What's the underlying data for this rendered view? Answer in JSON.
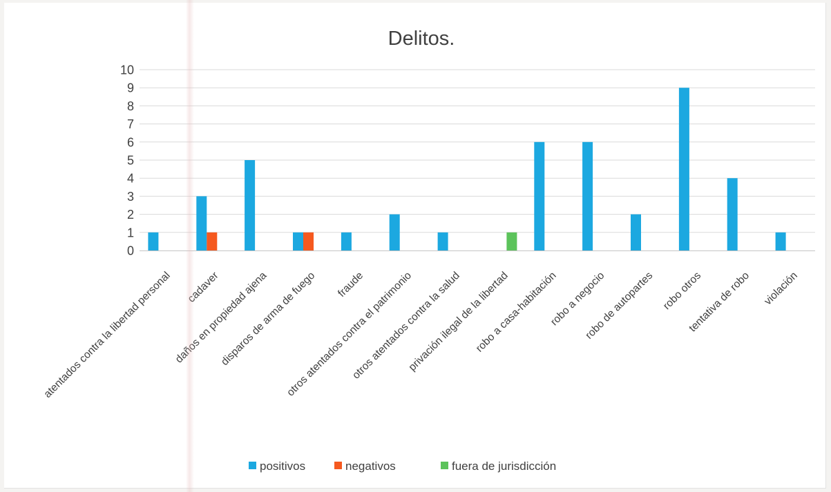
{
  "chart_data": {
    "type": "bar",
    "title": "Delitos.",
    "xlabel": "",
    "ylabel": "",
    "ylim": [
      0,
      10
    ],
    "yticks": [
      0,
      1,
      2,
      3,
      4,
      5,
      6,
      7,
      8,
      9,
      10
    ],
    "grid": true,
    "legend_position": "bottom",
    "categories": [
      "atentados contra la libertad personal",
      "cadaver",
      "daños en propiedad ajena",
      "disparos de arma de fuego",
      "fraude",
      "otros atentados contra el patrimonio",
      "otros atentados contra la salud",
      "privación ilegal de la libertad",
      "robo a casa-habitación",
      "robo a negocio",
      "robo de autopartes",
      "robo otros",
      "tentativa de robo",
      "violación"
    ],
    "series": [
      {
        "name": "positivos",
        "color": "#1ca8e0",
        "values": [
          1,
          3,
          5,
          1,
          1,
          2,
          1,
          0,
          6,
          6,
          2,
          9,
          4,
          1
        ]
      },
      {
        "name": "negativos",
        "color": "#f5591f",
        "values": [
          0,
          1,
          0,
          1,
          0,
          0,
          0,
          0,
          0,
          0,
          0,
          0,
          0,
          0
        ]
      },
      {
        "name": "fuera de jurisdicción",
        "color": "#5cc35b",
        "values": [
          0,
          0,
          0,
          0,
          0,
          0,
          0,
          1,
          0,
          0,
          0,
          0,
          0,
          0
        ]
      }
    ]
  }
}
